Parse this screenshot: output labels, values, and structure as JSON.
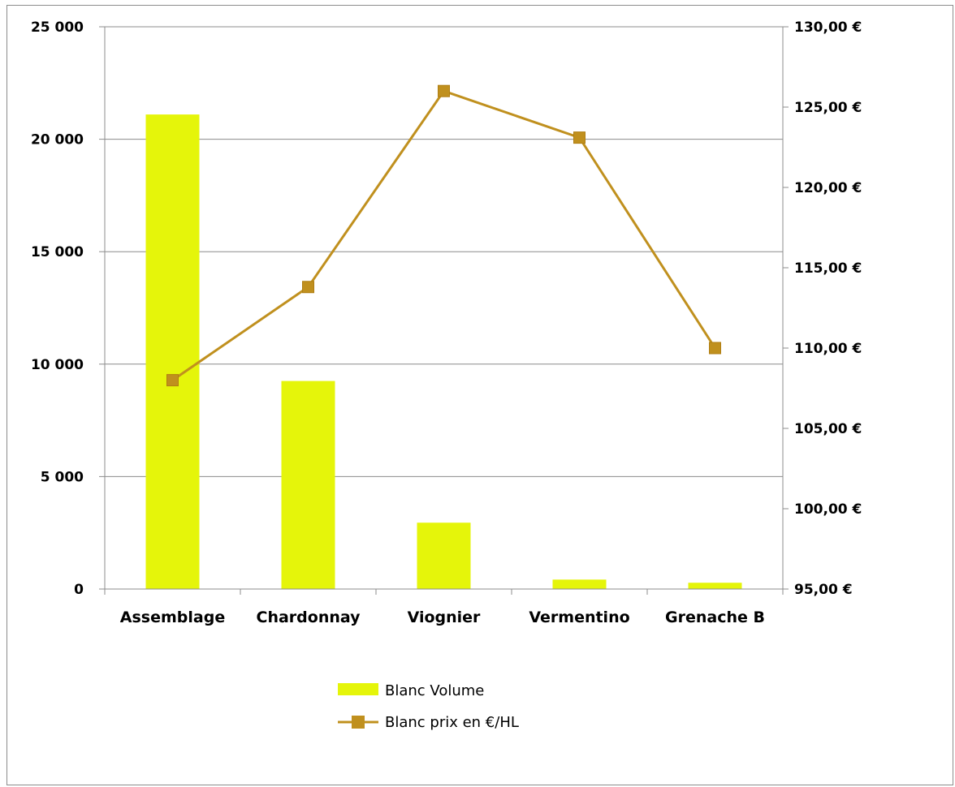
{
  "chart_data": {
    "type": "bar",
    "categories": [
      "Assemblage",
      "Chardonnay",
      "Viognier",
      "Vermentino",
      "Grenache B"
    ],
    "series": [
      {
        "name": "Blanc Volume",
        "type": "bar",
        "axis": "left",
        "color": "#e5f50a",
        "values": [
          21100,
          9250,
          2950,
          420,
          280
        ]
      },
      {
        "name": "Blanc prix en €/HL",
        "type": "line",
        "axis": "right",
        "color": "#c0901e",
        "marker": "square",
        "values": [
          108.0,
          113.8,
          126.0,
          123.1,
          110.0
        ]
      }
    ],
    "y_left": {
      "ylim": [
        0,
        25000
      ],
      "ticks": [
        0,
        5000,
        10000,
        15000,
        20000,
        25000
      ],
      "tick_labels": [
        "0",
        "5 000",
        "10 000",
        "15 000",
        "20 000",
        "25 000"
      ]
    },
    "y_right": {
      "ylim": [
        95,
        130
      ],
      "ticks": [
        95,
        100,
        105,
        110,
        115,
        120,
        125,
        130
      ],
      "tick_labels": [
        "95,00 €",
        "100,00 €",
        "105,00 €",
        "110,00 €",
        "115,00 €",
        "120,00 €",
        "125,00 €",
        "130,00 €"
      ]
    },
    "grid": true,
    "legend_position": "bottom"
  }
}
